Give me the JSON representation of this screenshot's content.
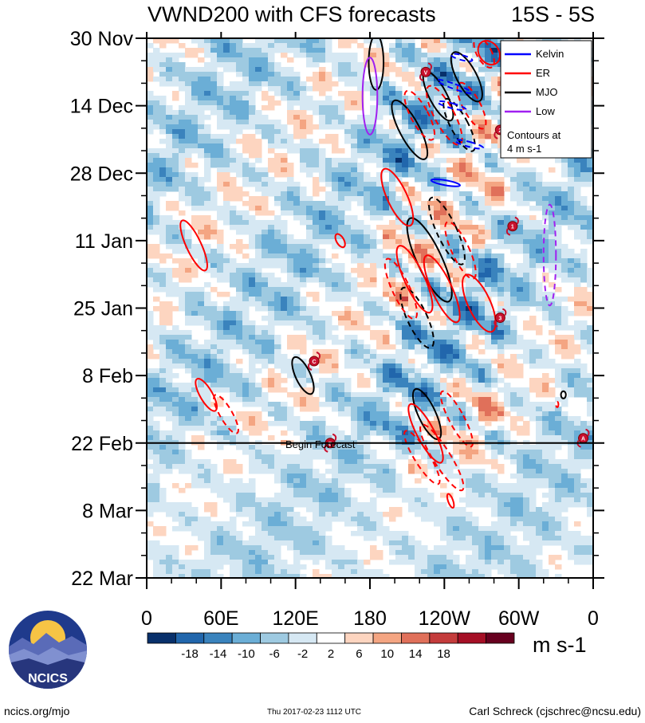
{
  "chart_data": {
    "type": "heatmap",
    "title": "VWND200 with CFS forecasts",
    "latitude_band": "15S - 5S",
    "time_axis_labels": [
      "30 Nov",
      "14 Dec",
      "28 Dec",
      "11 Jan",
      "25 Jan",
      "8 Feb",
      "22 Feb",
      "8 Mar",
      "22 Mar"
    ],
    "longitude_axis_labels": [
      "0",
      "60E",
      "120E",
      "180",
      "120W",
      "60W",
      "0"
    ],
    "longitude_range_deg": [
      0,
      360
    ],
    "time_range_days": [
      0,
      112
    ],
    "forecast_start_day": 84,
    "forecast_label": "Begin Forecast",
    "units": "m s-1",
    "colorbar": {
      "ticks": [
        "-18",
        "-14",
        "-10",
        "-6",
        "-2",
        "2",
        "6",
        "10",
        "14",
        "18"
      ],
      "colors": [
        "#08306b",
        "#2166ac",
        "#3a83bd",
        "#6baed6",
        "#9ecae1",
        "#d6e8f3",
        "#ffffff",
        "#fdd5c0",
        "#f4a582",
        "#e0705a",
        "#c43c3c",
        "#a50f25",
        "#67001f"
      ]
    },
    "legend": [
      {
        "name": "Kelvin",
        "color": "#0000ff"
      },
      {
        "name": "ER",
        "color": "#ff0000"
      },
      {
        "name": "MJO",
        "color": "#000000"
      },
      {
        "name": "Low",
        "color": "#a020f0"
      }
    ],
    "legend_note": [
      "Contours at",
      "4 m s-1"
    ],
    "storm_markers": [
      {
        "label": "V",
        "lon": 225,
        "day": 7
      },
      {
        "label": "2",
        "lon": 285,
        "day": 19
      },
      {
        "label": "10",
        "lon": 330,
        "day": 21
      },
      {
        "label": "1",
        "lon": 295,
        "day": 39
      },
      {
        "label": "3",
        "lon": 285,
        "day": 58
      },
      {
        "label": "C",
        "lon": 135,
        "day": 67
      },
      {
        "label": "A",
        "lon": 352,
        "day": 83
      },
      {
        "label": "B",
        "lon": 148,
        "day": 84
      }
    ],
    "contours": [
      {
        "kind": "MJO",
        "lon": 185,
        "day": 5,
        "rx": 6,
        "ry": 30,
        "rot": 0,
        "dashed": false
      },
      {
        "kind": "MJO",
        "lon": 235,
        "day": 12,
        "rx": 7,
        "ry": 30,
        "rot": -28,
        "dashed": false
      },
      {
        "kind": "MJO",
        "lon": 252,
        "day": 18,
        "rx": 7,
        "ry": 32,
        "rot": -28,
        "dashed": true
      },
      {
        "kind": "MJO",
        "lon": 212,
        "day": 19,
        "rx": 8,
        "ry": 36,
        "rot": -28,
        "dashed": false
      },
      {
        "kind": "MJO",
        "lon": 258,
        "day": 8,
        "rx": 8,
        "ry": 30,
        "rot": -28,
        "dashed": false
      },
      {
        "kind": "MJO",
        "lon": 228,
        "day": 46,
        "rx": 10,
        "ry": 50,
        "rot": -25,
        "dashed": false
      },
      {
        "kind": "MJO",
        "lon": 218,
        "day": 58,
        "rx": 8,
        "ry": 36,
        "rot": -25,
        "dashed": true
      },
      {
        "kind": "MJO",
        "lon": 242,
        "day": 40,
        "rx": 8,
        "ry": 40,
        "rot": -25,
        "dashed": true
      },
      {
        "kind": "MJO",
        "lon": 226,
        "day": 78,
        "rx": 7,
        "ry": 30,
        "rot": -25,
        "dashed": false
      },
      {
        "kind": "MJO",
        "lon": 126,
        "day": 70,
        "rx": 6,
        "ry": 22,
        "rot": -25,
        "dashed": false
      },
      {
        "kind": "ER",
        "lon": 202,
        "day": 33,
        "rx": 8,
        "ry": 34,
        "rot": -25,
        "dashed": false
      },
      {
        "kind": "ER",
        "lon": 216,
        "day": 50,
        "rx": 8,
        "ry": 40,
        "rot": -25,
        "dashed": false
      },
      {
        "kind": "ER",
        "lon": 205,
        "day": 52,
        "rx": 7,
        "ry": 36,
        "rot": -25,
        "dashed": true
      },
      {
        "kind": "ER",
        "lon": 238,
        "day": 52,
        "rx": 8,
        "ry": 40,
        "rot": -25,
        "dashed": false
      },
      {
        "kind": "ER",
        "lon": 253,
        "day": 44,
        "rx": 7,
        "ry": 34,
        "rot": -25,
        "dashed": true
      },
      {
        "kind": "ER",
        "lon": 268,
        "day": 55,
        "rx": 9,
        "ry": 34,
        "rot": -25,
        "dashed": false
      },
      {
        "kind": "ER",
        "lon": 240,
        "day": 16,
        "rx": 8,
        "ry": 36,
        "rot": -28,
        "dashed": true
      },
      {
        "kind": "ER",
        "lon": 220,
        "day": 16,
        "rx": 7,
        "ry": 30,
        "rot": -28,
        "dashed": true
      },
      {
        "kind": "ER",
        "lon": 262,
        "day": 14,
        "rx": 7,
        "ry": 28,
        "rot": -28,
        "dashed": true
      },
      {
        "kind": "ER",
        "lon": 272,
        "day": 3,
        "rx": 6,
        "ry": 18,
        "rot": -28,
        "dashed": true
      },
      {
        "kind": "ER",
        "lon": 276,
        "day": 3,
        "rx": 8,
        "ry": 14,
        "rot": -35,
        "dashed": false
      },
      {
        "kind": "ER",
        "lon": 38,
        "day": 43,
        "rx": 6,
        "ry": 30,
        "rot": -25,
        "dashed": false
      },
      {
        "kind": "ER",
        "lon": 48,
        "day": 74,
        "rx": 5,
        "ry": 20,
        "rot": -30,
        "dashed": false
      },
      {
        "kind": "ER",
        "lon": 64,
        "day": 78,
        "rx": 5,
        "ry": 24,
        "rot": -30,
        "dashed": true
      },
      {
        "kind": "ER",
        "lon": 225,
        "day": 82,
        "rx": 7,
        "ry": 36,
        "rot": -28,
        "dashed": false
      },
      {
        "kind": "ER",
        "lon": 238,
        "day": 87,
        "rx": 7,
        "ry": 42,
        "rot": -32,
        "dashed": true
      },
      {
        "kind": "ER",
        "lon": 222,
        "day": 87,
        "rx": 6,
        "ry": 34,
        "rot": -32,
        "dashed": true
      },
      {
        "kind": "ER",
        "lon": 250,
        "day": 79,
        "rx": 6,
        "ry": 34,
        "rot": -28,
        "dashed": true
      },
      {
        "kind": "ER",
        "lon": 156,
        "day": 42,
        "rx": 3,
        "ry": 8,
        "rot": -30,
        "dashed": false
      },
      {
        "kind": "ER",
        "lon": 331,
        "day": 76,
        "rx": 1,
        "ry": 3,
        "rot": 0,
        "dashed": true
      },
      {
        "kind": "ER",
        "lon": 245,
        "day": 96,
        "rx": 2,
        "ry": 8,
        "rot": -20,
        "dashed": false
      },
      {
        "kind": "Kelvin",
        "lon": 248,
        "day": 10,
        "rx": 2,
        "ry": 20,
        "rot": -70,
        "dashed": true
      },
      {
        "kind": "Kelvin",
        "lon": 246,
        "day": 14,
        "rx": 2,
        "ry": 16,
        "rot": -75,
        "dashed": true
      },
      {
        "kind": "Kelvin",
        "lon": 260,
        "day": 22,
        "rx": 2,
        "ry": 16,
        "rot": -75,
        "dashed": true
      },
      {
        "kind": "Kelvin",
        "lon": 241,
        "day": 30,
        "rx": 2,
        "ry": 16,
        "rot": -80,
        "dashed": false
      },
      {
        "kind": "Kelvin",
        "lon": 254,
        "day": 4,
        "rx": 2,
        "ry": 12,
        "rot": -75,
        "dashed": true
      },
      {
        "kind": "Low",
        "lon": 180,
        "day": 12,
        "rx": 6,
        "ry": 42,
        "rot": 0,
        "dashed": false
      },
      {
        "kind": "Low",
        "lon": 325,
        "day": 45,
        "rx": 5,
        "ry": 55,
        "rot": 0,
        "dashed": true
      },
      {
        "kind": "MJO",
        "lon": 336,
        "day": 74,
        "rx": 2,
        "ry": 4,
        "rot": 0,
        "dashed": false
      }
    ]
  },
  "footer": {
    "site": "ncics.org/mjo",
    "timestamp": "Thu 2017-02-23 1112 UTC",
    "author": "Carl Schreck (cjschrec@ncsu.edu)"
  },
  "logo": {
    "text": "NCICS"
  }
}
